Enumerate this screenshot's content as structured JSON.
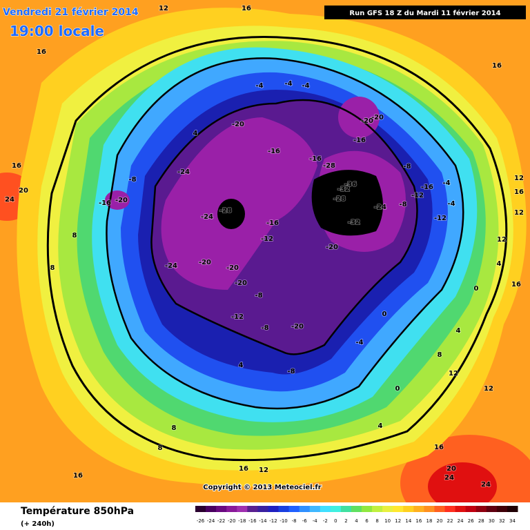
{
  "header": {
    "valid_date": "Vendredi 21 février 2014",
    "local_time": "19:00 locale",
    "run": "Run GFS 18 Z du Mardi 11 février 2014"
  },
  "copyright": "Copyright © 2013 Meteociel.fr",
  "footer": {
    "title": "Température 850hPa",
    "lead": "(+ 240h)"
  },
  "legend": {
    "ticks": [
      -26,
      -24,
      -22,
      -20,
      -18,
      -16,
      -14,
      -12,
      -10,
      -8,
      -6,
      -4,
      -2,
      0,
      2,
      4,
      6,
      8,
      10,
      12,
      14,
      16,
      18,
      20,
      22,
      24,
      26,
      28,
      30,
      32,
      34
    ],
    "colors": [
      "#2a0030",
      "#4a0060",
      "#6a0a80",
      "#8a1a9a",
      "#a030b0",
      "#5a2090",
      "#3a20a0",
      "#2020c0",
      "#1a40e0",
      "#2060ff",
      "#3090ff",
      "#40b8ff",
      "#40e0ff",
      "#40f0e0",
      "#40e0a0",
      "#60e060",
      "#90e840",
      "#c0f040",
      "#e8f040",
      "#ffe830",
      "#ffd020",
      "#ffb020",
      "#ff9020",
      "#ff6020",
      "#ff3020",
      "#e01010",
      "#c00010",
      "#900010",
      "#600010",
      "#400008",
      "#200004"
    ]
  },
  "contour_labels": [
    12,
    16,
    16,
    16,
    4,
    -4,
    -4,
    -4,
    -20,
    -20,
    -20,
    -16,
    -16,
    -16,
    -28,
    -24,
    -8,
    -36,
    -32,
    -28,
    -8,
    -4,
    -16,
    -12,
    -8,
    -24,
    -4,
    -12,
    -16,
    -20,
    -28,
    -24,
    -32,
    -16,
    -12,
    -20,
    -24,
    -20,
    -20,
    -20,
    -8,
    -12,
    -8,
    -20,
    -4,
    0,
    0,
    4,
    12,
    16,
    16,
    20,
    24,
    8,
    8,
    4,
    -8,
    0,
    4,
    8,
    12,
    12,
    4,
    8,
    8,
    16,
    20,
    24,
    24,
    16,
    16,
    12,
    12,
    16,
    12
  ]
}
